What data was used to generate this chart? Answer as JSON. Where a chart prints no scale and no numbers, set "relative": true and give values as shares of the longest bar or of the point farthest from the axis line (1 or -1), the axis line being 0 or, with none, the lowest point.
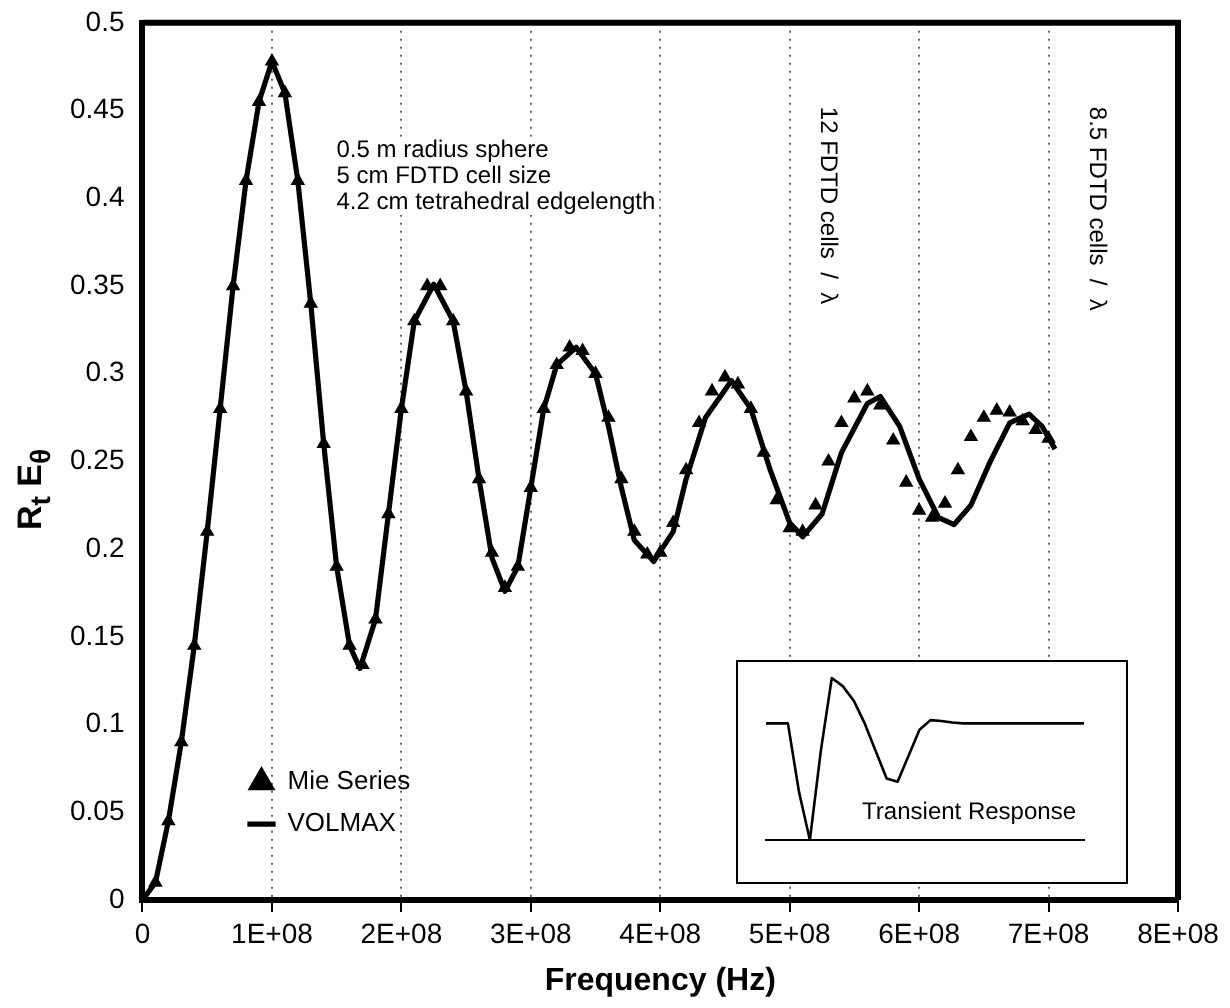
{
  "chart_data": [
    {
      "type": "line",
      "xlabel": "Frequency (Hz)",
      "ylabel": "R$_{t}$ E$_{θ}$",
      "xlim": [
        0,
        800000000
      ],
      "xticks": [
        0,
        {
          "value": 100000000,
          "label": "1E+08"
        },
        {
          "value": 200000000,
          "label": "2E+08"
        },
        {
          "value": 300000000,
          "label": "3E+08"
        },
        {
          "value": 400000000,
          "label": "4E+08"
        },
        {
          "value": 500000000,
          "label": "5E+08"
        },
        {
          "value": 600000000,
          "label": "6E+08"
        },
        {
          "value": 700000000,
          "label": "7E+08"
        },
        {
          "value": 800000000,
          "label": "8E+08"
        }
      ],
      "ylim": [
        0,
        0.5
      ],
      "yticks": [
        0,
        0.05,
        0.1,
        0.15,
        0.2,
        0.25,
        0.3,
        0.35,
        0.4,
        0.45,
        0.5
      ],
      "grid": "x",
      "legend": "bottom left",
      "annotations": [
        "0.5 m radius sphere",
        "5 cm FDTD cell size",
        "4.2 cm tetrahedral edgelength",
        "12 FDTD cells  /  λ",
        "8.5 FDTD cells  /  λ"
      ],
      "series": [
        {
          "name": "Mie Series",
          "type": "scatter",
          "marker": "triangle",
          "color": "#000000",
          "x": [
            10000000,
            20000000,
            30000000,
            40000000,
            50000000,
            60000000,
            70000000,
            80000000,
            90000000,
            100000000,
            110000000,
            120000000,
            130000000,
            140000000,
            150000000,
            160000000,
            170000000,
            180000000,
            190000000,
            200000000,
            210000000,
            220000000,
            230000000,
            240000000,
            250000000,
            260000000,
            270000000,
            280000000,
            290000000,
            300000000,
            310000000,
            320000000,
            330000000,
            340000000,
            350000000,
            360000000,
            370000000,
            380000000,
            390000000,
            400000000,
            410000000,
            420000000,
            430000000,
            440000000,
            450000000,
            460000000,
            470000000,
            480000000,
            490000000,
            500000000,
            510000000,
            520000000,
            530000000,
            540000000,
            550000000,
            560000000,
            570000000,
            580000000,
            590000000,
            600000000,
            610000000,
            620000000,
            630000000,
            640000000,
            650000000,
            660000000,
            670000000,
            680000000,
            690000000,
            700000000
          ],
          "values": [
            0.01,
            0.045,
            0.09,
            0.145,
            0.21,
            0.28,
            0.35,
            0.41,
            0.455,
            0.478,
            0.46,
            0.41,
            0.34,
            0.26,
            0.19,
            0.145,
            0.134,
            0.16,
            0.22,
            0.28,
            0.33,
            0.35,
            0.35,
            0.33,
            0.29,
            0.24,
            0.198,
            0.178,
            0.19,
            0.235,
            0.28,
            0.305,
            0.315,
            0.313,
            0.3,
            0.275,
            0.24,
            0.21,
            0.197,
            0.198,
            0.215,
            0.245,
            0.272,
            0.29,
            0.298,
            0.294,
            0.28,
            0.255,
            0.228,
            0.212,
            0.21,
            0.225,
            0.25,
            0.272,
            0.286,
            0.29,
            0.282,
            0.262,
            0.238,
            0.222,
            0.218,
            0.226,
            0.245,
            0.264,
            0.275,
            0.279,
            0.278,
            0.273,
            0.268,
            0.263
          ]
        },
        {
          "name": "VOLMAX",
          "type": "line",
          "marker": "none",
          "color": "#000000",
          "x": [
            0,
            10000000,
            20000000,
            30000000,
            40000000,
            50000000,
            60000000,
            70000000,
            80000000,
            90000000,
            100000000,
            110000000,
            120000000,
            130000000,
            140000000,
            150000000,
            160000000,
            168000000,
            180000000,
            190000000,
            200000000,
            210000000,
            225000000,
            240000000,
            250000000,
            260000000,
            270000000,
            280000000,
            290000000,
            300000000,
            310000000,
            320000000,
            335000000,
            350000000,
            360000000,
            370000000,
            380000000,
            395000000,
            410000000,
            420000000,
            435000000,
            455000000,
            470000000,
            485000000,
            500000000,
            510000000,
            525000000,
            540000000,
            560000000,
            570000000,
            585000000,
            600000000,
            615000000,
            627000000,
            640000000,
            655000000,
            670000000,
            685000000,
            695000000,
            705000000
          ],
          "values": [
            0,
            0.01,
            0.045,
            0.09,
            0.145,
            0.21,
            0.28,
            0.35,
            0.41,
            0.455,
            0.478,
            0.46,
            0.41,
            0.34,
            0.26,
            0.19,
            0.145,
            0.132,
            0.16,
            0.22,
            0.28,
            0.33,
            0.351,
            0.33,
            0.29,
            0.24,
            0.195,
            0.176,
            0.19,
            0.235,
            0.28,
            0.305,
            0.315,
            0.3,
            0.27,
            0.235,
            0.205,
            0.193,
            0.21,
            0.24,
            0.275,
            0.296,
            0.28,
            0.245,
            0.215,
            0.207,
            0.22,
            0.255,
            0.283,
            0.287,
            0.27,
            0.24,
            0.218,
            0.214,
            0.225,
            0.25,
            0.272,
            0.277,
            0.27,
            0.257
          ]
        }
      ]
    },
    {
      "type": "line",
      "relative": true,
      "annotations": [
        "Transient Response"
      ],
      "categories": [
        null,
        null,
        null,
        null,
        null,
        null,
        null,
        null,
        null,
        null,
        null,
        null,
        null,
        null,
        null,
        null,
        null,
        null,
        null,
        null,
        null,
        null,
        null,
        null,
        null,
        null,
        null,
        null,
        null,
        null
      ],
      "series": [
        {
          "color": "#000000",
          "values": [
            0.72,
            0.72,
            0.72,
            0.3,
            0,
            0.55,
            1,
            0.95,
            0.86,
            0.72,
            0.55,
            0.38,
            0.36,
            0.52,
            0.68,
            0.74,
            0.735,
            0.725,
            0.72,
            0.72,
            0.72,
            0.72,
            0.72,
            0.72,
            0.72,
            0.72,
            0.72,
            0.72,
            0.72,
            0.72
          ]
        }
      ]
    }
  ]
}
